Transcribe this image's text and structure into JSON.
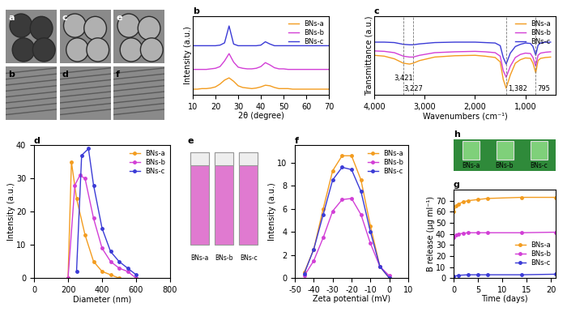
{
  "chart_data": [
    {
      "type": "line",
      "title": "b",
      "x_label": "2θ (degree)",
      "y_label": "Intensity (a.u.)",
      "x": [
        10,
        12,
        14,
        16,
        18,
        20,
        22,
        24,
        26,
        28,
        30,
        32,
        34,
        36,
        38,
        40,
        42,
        44,
        46,
        48,
        50,
        52,
        54,
        56,
        58,
        60,
        62,
        64,
        66,
        68,
        70
      ],
      "series": [
        {
          "name": "BNs-a",
          "color": "#f39c1f",
          "values": [
            1.0,
            1.0,
            1.1,
            1.1,
            1.2,
            1.4,
            1.9,
            2.6,
            3.0,
            2.4,
            1.6,
            1.3,
            1.2,
            1.1,
            1.2,
            1.4,
            1.7,
            1.6,
            1.3,
            1.1,
            1.1,
            1.1,
            1.0,
            1.0,
            1.0,
            1.0,
            1.0,
            1.0,
            1.0,
            1.0,
            1.0
          ]
        },
        {
          "name": "BNs-b",
          "color": "#d23fd6",
          "values": [
            4.5,
            4.5,
            4.5,
            4.5,
            4.6,
            4.7,
            5.0,
            6.0,
            7.3,
            5.8,
            4.9,
            4.7,
            4.6,
            4.6,
            4.7,
            5.0,
            5.7,
            5.3,
            4.8,
            4.6,
            4.6,
            4.5,
            4.5,
            4.5,
            4.5,
            4.5,
            4.5,
            4.5,
            4.5,
            4.5,
            4.5
          ]
        },
        {
          "name": "BNs-c",
          "color": "#3b3bd6",
          "values": [
            8.7,
            8.7,
            8.7,
            8.7,
            8.7,
            8.7,
            8.8,
            9.2,
            12.2,
            9.0,
            8.7,
            8.7,
            8.7,
            8.7,
            8.7,
            8.8,
            9.4,
            9.0,
            8.7,
            8.7,
            8.7,
            8.7,
            8.7,
            8.7,
            8.7,
            8.7,
            8.7,
            8.7,
            8.7,
            8.7,
            8.7
          ]
        }
      ],
      "xlim": [
        10,
        70
      ],
      "xticks": [
        10,
        20,
        30,
        40,
        50,
        60,
        70
      ],
      "ylim": [
        0,
        14
      ],
      "tick_labels": "x",
      "legend": "upper right"
    },
    {
      "type": "line",
      "title": "c",
      "x_label": "Wavenumbers (cm⁻¹)",
      "y_label": "Transmittance (a.u.)",
      "x": [
        4000,
        3800,
        3600,
        3421,
        3300,
        3227,
        3100,
        2800,
        2400,
        2000,
        1800,
        1600,
        1500,
        1440,
        1382,
        1300,
        1200,
        1100,
        1000,
        900,
        850,
        795,
        750,
        700,
        600,
        500
      ],
      "series": [
        {
          "name": "BNs-a",
          "color": "#f39c1f",
          "values": [
            9.0,
            8.8,
            8.2,
            7.2,
            7.0,
            7.2,
            7.8,
            8.6,
            8.9,
            9.0,
            8.8,
            8.5,
            7.5,
            3.5,
            1.5,
            4.5,
            7.2,
            8.0,
            8.4,
            8.3,
            7.2,
            5.0,
            7.8,
            8.3,
            8.5,
            8.6
          ]
        },
        {
          "name": "BNs-b",
          "color": "#d23fd6",
          "values": [
            10.0,
            9.9,
            9.6,
            8.8,
            8.6,
            8.6,
            9.0,
            9.6,
            9.8,
            9.9,
            9.8,
            9.6,
            8.8,
            5.5,
            4.0,
            6.5,
            8.5,
            9.2,
            9.5,
            9.4,
            8.5,
            6.5,
            9.0,
            9.5,
            9.7,
            9.8
          ]
        },
        {
          "name": "BNs-c",
          "color": "#3b3bd6",
          "values": [
            12.0,
            12.0,
            11.9,
            11.5,
            11.4,
            11.4,
            11.6,
            11.9,
            12.0,
            12.0,
            11.9,
            11.8,
            11.2,
            8.5,
            7.0,
            9.5,
            11.0,
            11.5,
            11.8,
            11.7,
            11.0,
            9.0,
            11.3,
            11.8,
            12.0,
            12.0
          ]
        }
      ],
      "annotations": [
        {
          "x": 3421,
          "label": "3,421"
        },
        {
          "x": 3227,
          "label": "3,227"
        },
        {
          "x": 1382,
          "label": "1,382"
        },
        {
          "x": 795,
          "label": "795"
        }
      ],
      "xlim": [
        4000,
        400
      ],
      "xticks": [
        {
          "value": 4000,
          "label": "4,000"
        },
        {
          "value": 3000,
          "label": "3,000"
        },
        {
          "value": 2000,
          "label": "2,000"
        },
        {
          "value": 1000,
          "label": "1,000"
        }
      ],
      "ylim": [
        0,
        18
      ],
      "tick_labels": "x",
      "legend": "upper right"
    },
    {
      "type": "line",
      "title": "d",
      "x_label": "Diameter (nm)",
      "y_label": "Intensity (a.u.)",
      "series": [
        {
          "name": "BNs-a",
          "color": "#f39c1f",
          "marker": "o",
          "x": [
            200,
            220,
            250,
            300,
            350,
            400,
            450,
            500
          ],
          "values": [
            0,
            35,
            24,
            13,
            5,
            2,
            1,
            0
          ]
        },
        {
          "name": "BNs-b",
          "color": "#d23fd6",
          "marker": "o",
          "x": [
            200,
            240,
            270,
            300,
            350,
            400,
            450,
            500,
            550,
            600
          ],
          "values": [
            0,
            28,
            31,
            30,
            18,
            9,
            5,
            3,
            2,
            0
          ]
        },
        {
          "name": "BNs-c",
          "color": "#3b3bd6",
          "marker": "o",
          "x": [
            250,
            280,
            320,
            350,
            400,
            450,
            500,
            550,
            600
          ],
          "values": [
            2,
            37,
            39,
            28,
            15,
            8,
            5,
            3,
            1
          ]
        }
      ],
      "xlim": [
        0,
        800
      ],
      "xticks": [
        0,
        200,
        400,
        600,
        800
      ],
      "ylim": [
        0,
        40
      ],
      "yticks": [
        0,
        10,
        20,
        30,
        40
      ],
      "legend": "upper right"
    },
    {
      "type": "line",
      "title": "f",
      "x_label": "Zeta potential (mV)",
      "y_label": "Intensity (a.u.)",
      "series": [
        {
          "name": "BNs-a",
          "color": "#f39c1f",
          "marker": "o",
          "x": [
            -45,
            -40,
            -35,
            -30,
            -25,
            -20,
            -15,
            -10,
            -5,
            0
          ],
          "values": [
            0.5,
            2.5,
            6,
            9.3,
            10.6,
            10.6,
            8.5,
            4.5,
            1,
            0
          ]
        },
        {
          "name": "BNs-b",
          "color": "#d23fd6",
          "marker": "o",
          "x": [
            -45,
            -40,
            -35,
            -30,
            -25,
            -20,
            -15,
            -10,
            -5,
            0
          ],
          "values": [
            0.2,
            1.5,
            3.5,
            5.8,
            6.8,
            6.9,
            5.5,
            3,
            1,
            0.2
          ]
        },
        {
          "name": "BNs-c",
          "color": "#3b3bd6",
          "marker": "o",
          "x": [
            -45,
            -40,
            -35,
            -30,
            -25,
            -20,
            -15,
            -10,
            -5,
            0
          ],
          "values": [
            0.4,
            2.5,
            5.5,
            8.5,
            9.6,
            9.4,
            7.5,
            4,
            1,
            0
          ]
        }
      ],
      "xlim": [
        -50,
        10
      ],
      "xticks": [
        -50,
        -40,
        -30,
        -20,
        -10,
        0,
        10
      ],
      "ylim": [
        0,
        11.5
      ],
      "yticks": [
        0,
        2,
        4,
        6,
        8,
        10
      ],
      "legend": "upper right"
    },
    {
      "type": "line",
      "title": "g",
      "x_label": "Time (days)",
      "y_label": "B release (µg ml⁻¹)",
      "series": [
        {
          "name": "BNs-a",
          "color": "#f39c1f",
          "marker": "o",
          "x": [
            0,
            0.5,
            1,
            2,
            3,
            5,
            7,
            14,
            21
          ],
          "values": [
            60,
            65,
            67,
            69,
            70,
            71,
            72,
            73,
            73
          ]
        },
        {
          "name": "BNs-b",
          "color": "#d23fd6",
          "marker": "o",
          "x": [
            0,
            0.5,
            1,
            2,
            3,
            5,
            7,
            14,
            21
          ],
          "values": [
            37,
            39,
            40,
            40.5,
            41,
            41,
            41,
            41,
            41.5
          ]
        },
        {
          "name": "BNs-c",
          "color": "#3b3bd6",
          "marker": "o",
          "x": [
            0,
            1,
            3,
            5,
            7,
            14,
            21
          ],
          "values": [
            1.5,
            2.5,
            3,
            3,
            3,
            3,
            3.5
          ]
        }
      ],
      "xlim": [
        0,
        21
      ],
      "xticks": [
        0,
        5,
        10,
        15,
        20
      ],
      "ylim": [
        0,
        80
      ],
      "yticks": [
        0,
        10,
        20,
        30,
        40,
        50,
        60,
        70
      ],
      "legend": "lower right"
    }
  ],
  "tem_panels": [
    "a",
    "b",
    "c",
    "d",
    "e",
    "f"
  ],
  "photo_e": {
    "panel": "e",
    "labels": [
      "BNs-a",
      "BNs-b",
      "BNs-c"
    ]
  },
  "photo_h": {
    "panel": "h",
    "labels": [
      "BNs-a",
      "BNs-b",
      "BNs-c"
    ]
  }
}
